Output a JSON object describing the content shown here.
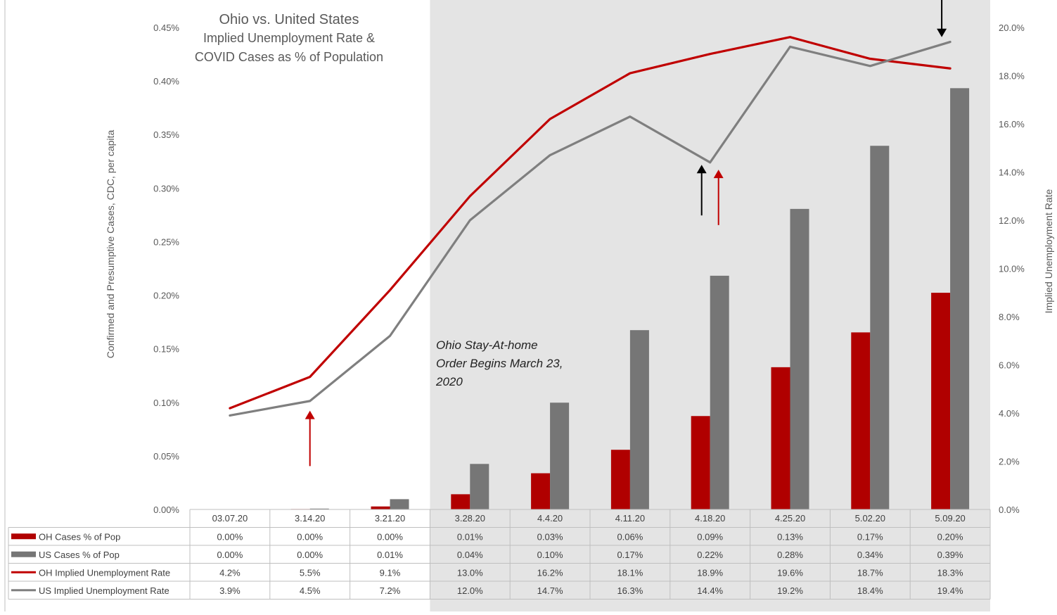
{
  "chart_data": {
    "type": "bar",
    "title": "Ohio vs. United States",
    "subtitle_lines": [
      "Implied Unemployment Rate &",
      "COVID Cases as % of Population"
    ],
    "ylabel_left": "Confirmed and Presumptive Cases, CDC, per capita",
    "ylabel_right": "Implied Unemployment Rate",
    "ylim_left": [
      0,
      0.45
    ],
    "ylim_right": [
      0,
      20
    ],
    "y_ticks_left": [
      "0.00%",
      "0.05%",
      "0.10%",
      "0.15%",
      "0.20%",
      "0.25%",
      "0.30%",
      "0.35%",
      "0.40%",
      "0.45%"
    ],
    "y_ticks_right": [
      "0.0%",
      "2.0%",
      "4.0%",
      "6.0%",
      "8.0%",
      "10.0%",
      "12.0%",
      "14.0%",
      "16.0%",
      "18.0%",
      "20.0%"
    ],
    "categories": [
      "03.07.20",
      "3.14.20",
      "3.21.20",
      "3.28.20",
      "4.4.20",
      "4.11.20",
      "4.18.20",
      "4.25.20",
      "5.02.20",
      "5.09.20"
    ],
    "annotation": [
      "Ohio Stay-At-home",
      "Order Begins March 23,",
      "2020"
    ],
    "shaded_from_category": "3.28.20",
    "series": [
      {
        "name": "OH Cases % of Pop",
        "kind": "bar",
        "axis": "left",
        "color": "#b00000",
        "values": [
          0.0,
          0.0004,
          0.0028,
          0.0142,
          0.0338,
          0.0557,
          0.0872,
          0.1328,
          0.1653,
          0.2023
        ],
        "labels": [
          "0.00%",
          "0.00%",
          "0.00%",
          "0.01%",
          "0.03%",
          "0.06%",
          "0.09%",
          "0.13%",
          "0.17%",
          "0.20%"
        ]
      },
      {
        "name": "US Cases % of Pop",
        "kind": "bar",
        "axis": "left",
        "color": "#767676",
        "values": [
          0.0001,
          0.0008,
          0.0096,
          0.0425,
          0.0997,
          0.1674,
          0.2182,
          0.2806,
          0.3395,
          0.3933
        ],
        "labels": [
          "0.00%",
          "0.00%",
          "0.01%",
          "0.04%",
          "0.10%",
          "0.17%",
          "0.22%",
          "0.28%",
          "0.34%",
          "0.39%"
        ]
      },
      {
        "name": "OH Implied Unemployment Rate",
        "kind": "line",
        "axis": "right",
        "color": "#c00000",
        "values": [
          4.2,
          5.5,
          9.1,
          13.0,
          16.2,
          18.1,
          18.9,
          19.6,
          18.7,
          18.3
        ],
        "labels": [
          "4.2%",
          "5.5%",
          "9.1%",
          "13.0%",
          "16.2%",
          "18.1%",
          "18.9%",
          "19.6%",
          "18.7%",
          "18.3%"
        ]
      },
      {
        "name": "US Implied Unemployment Rate",
        "kind": "line",
        "axis": "right",
        "color": "#7f7f7f",
        "values": [
          3.9,
          4.5,
          7.2,
          12.0,
          14.7,
          16.3,
          14.4,
          19.2,
          18.4,
          19.4
        ],
        "labels": [
          "3.9%",
          "4.5%",
          "7.2%",
          "12.0%",
          "14.7%",
          "16.3%",
          "14.4%",
          "19.2%",
          "18.4%",
          "19.4%"
        ]
      }
    ],
    "arrows": [
      {
        "category": "3.14.20",
        "direction": "up",
        "color": "#c00000",
        "from_value": 1.8,
        "to_value": 4.1,
        "axis": "right",
        "offset": "center"
      },
      {
        "category": "4.18.20",
        "direction": "up",
        "color": "#000000",
        "from_value": 12.2,
        "to_value": 14.3,
        "axis": "right",
        "offset": "left"
      },
      {
        "category": "4.18.20",
        "direction": "up",
        "color": "#c00000",
        "from_value": 11.8,
        "to_value": 14.1,
        "axis": "right",
        "offset": "right"
      },
      {
        "category": "5.09.20",
        "direction": "down",
        "color": "#000000",
        "from_value": 21.5,
        "to_value": 19.6,
        "axis": "right",
        "offset": "left"
      }
    ]
  }
}
